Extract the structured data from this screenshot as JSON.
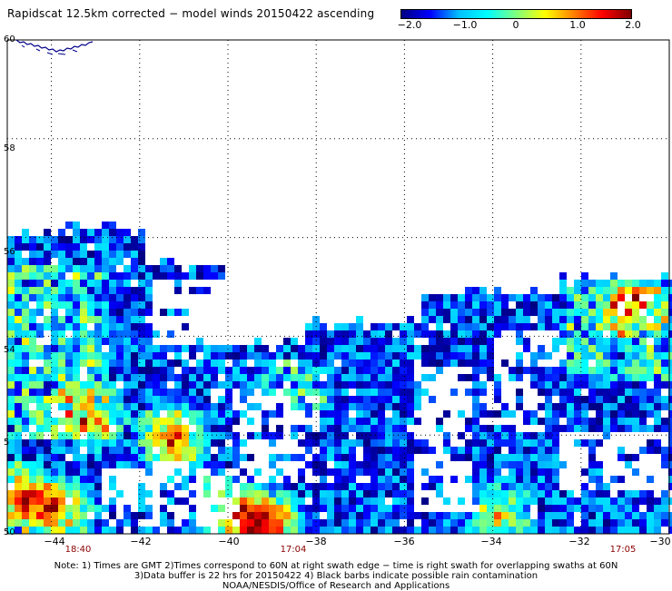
{
  "title": "Rapidscat 12.5km corrected − model winds 20150422 ascending",
  "colorbar": {
    "ticks": [
      "−2.0",
      "−1.0",
      "0",
      "1.0",
      "2.0"
    ],
    "stops": [
      "#000080",
      "#0000ff",
      "#00bfff",
      "#00ffff",
      "#7fff7f",
      "#ffff00",
      "#ff8000",
      "#ff0000",
      "#800000"
    ]
  },
  "map": {
    "lat_labels": [
      "60",
      "58",
      "56",
      "54",
      "5",
      "50"
    ],
    "lon_labels": [
      "−44",
      "−42",
      "−40",
      "−38",
      "−36",
      "−34",
      "−32",
      "−30"
    ],
    "lat_range": [
      50,
      60
    ],
    "lon_range": [
      -45,
      -30
    ],
    "grid": "dotted",
    "coast_color": "#00008b"
  },
  "swath_times": [
    {
      "label": "18:40",
      "lon": -44
    },
    {
      "label": "17:04",
      "lon": -38
    },
    {
      "label": "17:05",
      "lon": -31
    }
  ],
  "notes": [
    "Note: 1) Times are GMT 2)Times correspond to 60N at right swath edge − time is right swath for overlapping swaths at 60N",
    "3)Data buffer is 22 hrs for 20150422 4) Black barbs indicate possible rain contamination",
    "NOAA/NESDIS/Office of Research and Applications"
  ]
}
